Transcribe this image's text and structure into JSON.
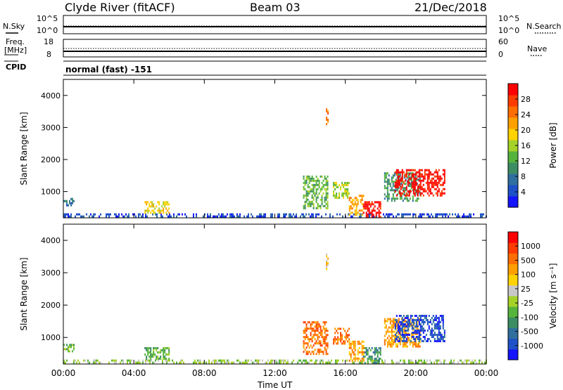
{
  "header": {
    "station": "Clyde River (fitACF)",
    "beam": "Beam 03",
    "date": "21/Dec/2018"
  },
  "noise_panel": {
    "left_label": "N.Sky",
    "right_label": "N.Search",
    "left_ticks": [
      "10^5",
      "10^0"
    ],
    "right_ticks": [
      "10^5",
      "10^0"
    ],
    "left_line_style": "solid",
    "right_line_style": "dotted"
  },
  "freq_panel": {
    "left_label_line1": "Freq.",
    "left_label_line2": "[MHz]",
    "right_label": "Nave",
    "left_ticks": [
      "18",
      "8"
    ],
    "right_ticks": [
      "60",
      "0"
    ],
    "cpid_label": "CPID",
    "cpid_text": "normal (fast) -151",
    "left_line_style": "solid",
    "right_line_style": "dotted"
  },
  "chart_data": [
    {
      "type": "heatmap",
      "title": "Power",
      "xlabel": "Time UT",
      "ylabel": "Slant Range [km]",
      "x_ticks": [
        "00:00",
        "04:00",
        "08:00",
        "12:00",
        "16:00",
        "20:00",
        "00:00"
      ],
      "x_tick_hours": [
        0,
        4,
        8,
        12,
        16,
        20,
        24
      ],
      "xlim_hours": [
        0,
        24
      ],
      "y_ticks": [
        1000,
        2000,
        3000,
        4000
      ],
      "ylim": [
        180,
        4500
      ],
      "colorbar": {
        "label": "Power [dB]",
        "tick_labels": [
          "28",
          "24",
          "20",
          "16",
          "12",
          "8",
          "4"
        ],
        "colors": [
          "#1414ff",
          "#1e50c8",
          "#2f6fa0",
          "#3c8c64",
          "#55b43c",
          "#a5d228",
          "#ffd200",
          "#ffa000",
          "#ff6e00",
          "#ff3c00",
          "#ff0000"
        ]
      },
      "regions": [
        {
          "t": [
            0.0,
            0.6
          ],
          "r": [
            600,
            800
          ],
          "level": 2
        },
        {
          "t": [
            0.0,
            24.0
          ],
          "r": [
            190,
            320
          ],
          "level": 1
        },
        {
          "t": [
            4.6,
            6.0
          ],
          "r": [
            350,
            700
          ],
          "level": 6
        },
        {
          "t": [
            13.6,
            15.0
          ],
          "r": [
            500,
            1500
          ],
          "level": 4
        },
        {
          "t": [
            15.3,
            16.2
          ],
          "r": [
            800,
            1300
          ],
          "level": 5
        },
        {
          "t": [
            16.2,
            17.0
          ],
          "r": [
            300,
            900
          ],
          "level": 7
        },
        {
          "t": [
            17.0,
            18.0
          ],
          "r": [
            200,
            700
          ],
          "level": 10
        },
        {
          "t": [
            18.2,
            20.2
          ],
          "r": [
            700,
            1600
          ],
          "level": 3
        },
        {
          "t": [
            18.8,
            21.6
          ],
          "r": [
            900,
            1700
          ],
          "level": 10
        },
        {
          "t": [
            14.9,
            15.0
          ],
          "r": [
            3100,
            3600
          ],
          "level": 8
        }
      ]
    },
    {
      "type": "heatmap",
      "title": "Velocity",
      "xlabel": "Time UT",
      "ylabel": "Slant Range [km]",
      "x_ticks": [
        "00:00",
        "04:00",
        "08:00",
        "12:00",
        "16:00",
        "20:00",
        "00:00"
      ],
      "x_tick_hours": [
        0,
        4,
        8,
        12,
        16,
        20,
        24
      ],
      "xlim_hours": [
        0,
        24
      ],
      "y_ticks": [
        1000,
        2000,
        3000,
        4000
      ],
      "ylim": [
        180,
        4500
      ],
      "colorbar": {
        "label": "Velocity [m s⁻¹]",
        "tick_labels": [
          "1000",
          "500",
          "100",
          "25",
          "-25",
          "-100",
          "-500",
          "-1000"
        ],
        "colors": [
          "#1414ff",
          "#1e50c8",
          "#2f6fa0",
          "#3c8c64",
          "#55b43c",
          "#a5d228",
          "#c8c8c8",
          "#ffd200",
          "#ffa000",
          "#ff6e00",
          "#ff3c00",
          "#ff0000"
        ]
      },
      "regions": [
        {
          "t": [
            0.0,
            0.6
          ],
          "r": [
            600,
            800
          ],
          "level": 4
        },
        {
          "t": [
            0.0,
            24.0
          ],
          "r": [
            190,
            320
          ],
          "level": 5
        },
        {
          "t": [
            4.6,
            6.0
          ],
          "r": [
            350,
            700
          ],
          "level": 4
        },
        {
          "t": [
            13.6,
            15.0
          ],
          "r": [
            500,
            1500
          ],
          "level": 9
        },
        {
          "t": [
            15.3,
            16.2
          ],
          "r": [
            800,
            1300
          ],
          "level": 9
        },
        {
          "t": [
            16.2,
            17.0
          ],
          "r": [
            300,
            900
          ],
          "level": 8
        },
        {
          "t": [
            17.0,
            18.0
          ],
          "r": [
            200,
            700
          ],
          "level": 3
        },
        {
          "t": [
            18.2,
            20.2
          ],
          "r": [
            700,
            1600
          ],
          "level": 8
        },
        {
          "t": [
            18.8,
            21.6
          ],
          "r": [
            900,
            1700
          ],
          "level": 1
        },
        {
          "t": [
            14.9,
            15.0
          ],
          "r": [
            3100,
            3600
          ],
          "level": 7
        }
      ]
    }
  ]
}
